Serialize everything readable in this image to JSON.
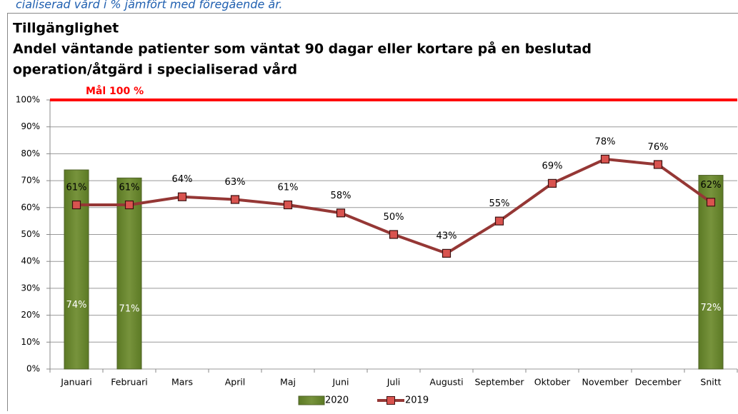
{
  "chart_data": {
    "type": "bar",
    "caption": "cialiserad vård i % jämfört med föregående år.",
    "title": "Tillgänglighet",
    "subtitle": [
      "Andel väntande patienter som väntat 90 dagar eller kortare på en beslutad",
      "operation/åtgärd i specialiserad vård"
    ],
    "goal": {
      "value": 100,
      "label": "Mål 100 %",
      "color": "#ff0000"
    },
    "categories": [
      "Januari",
      "Februari",
      "Mars",
      "April",
      "Maj",
      "Juni",
      "Juli",
      "Augusti",
      "September",
      "Oktober",
      "November",
      "December",
      "Snitt"
    ],
    "series": [
      {
        "name": "2020",
        "type": "bar",
        "color": "#77933c",
        "values": [
          74,
          71,
          null,
          null,
          null,
          null,
          null,
          null,
          null,
          null,
          null,
          null,
          72
        ],
        "value_labels": [
          "74%",
          "71%",
          null,
          null,
          null,
          null,
          null,
          null,
          null,
          null,
          null,
          null,
          "72%"
        ]
      },
      {
        "name": "2019",
        "type": "line",
        "color": "#953735",
        "marker_color": "#d9534f",
        "values": [
          61,
          61,
          64,
          63,
          61,
          58,
          50,
          43,
          55,
          69,
          78,
          76,
          62
        ],
        "value_labels": [
          "61%",
          "61%",
          "64%",
          "63%",
          "61%",
          "58%",
          "50%",
          "43%",
          "55%",
          "69%",
          "78%",
          "76%",
          "62%"
        ]
      }
    ],
    "ylim": [
      0,
      100
    ],
    "yticks": [
      {
        "value": 0,
        "label": "0%"
      },
      {
        "value": 10,
        "label": "10%"
      },
      {
        "value": 20,
        "label": "20%"
      },
      {
        "value": 30,
        "label": "30%"
      },
      {
        "value": 40,
        "label": "40%"
      },
      {
        "value": 50,
        "label": "50%"
      },
      {
        "value": 60,
        "label": "60%"
      },
      {
        "value": 70,
        "label": "70%"
      },
      {
        "value": 80,
        "label": "80%"
      },
      {
        "value": 90,
        "label": "90%"
      },
      {
        "value": 100,
        "label": "100%"
      }
    ],
    "grid": true,
    "legend": "bottom"
  }
}
